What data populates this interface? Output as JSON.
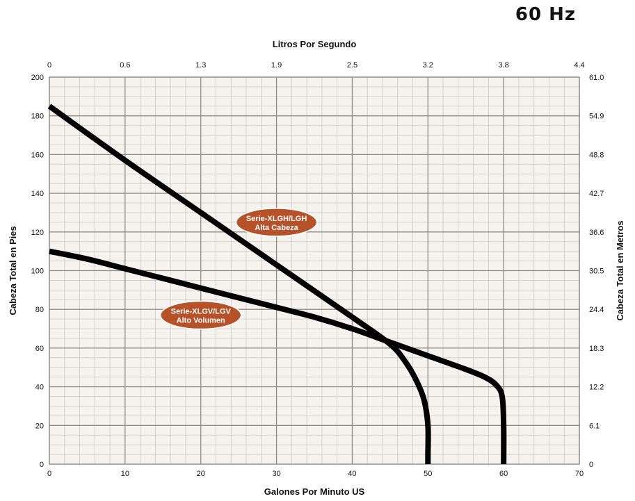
{
  "header": {
    "frequency_label": "60 Hz"
  },
  "chart_data": {
    "type": "line",
    "title": "",
    "xlabel": "Galones Por Minuto US",
    "ylabel": "Cabeza Total en Pies",
    "x2label": "Litros Por Segundo",
    "y2label": "Cabeza Total en Metros",
    "xlim": [
      0,
      70
    ],
    "ylim": [
      0,
      200
    ],
    "x_ticks": [
      0,
      10,
      20,
      30,
      40,
      50,
      60,
      70
    ],
    "y_ticks": [
      0,
      20,
      40,
      60,
      80,
      100,
      120,
      140,
      160,
      180,
      200
    ],
    "x2_tick_labels": [
      "0",
      "0.6",
      "1.3",
      "1.9",
      "2.5",
      "3.2",
      "3.8",
      "4.4"
    ],
    "y2_tick_labels": [
      "0",
      "6.1",
      "12.2",
      "18.3",
      "24.4",
      "30.5",
      "36.6",
      "42.7",
      "48.8",
      "54.9",
      "61.0"
    ],
    "grid": true,
    "colors": {
      "curve": "#000000",
      "badge": "#b5522a",
      "grid_major": "#8c8c8c",
      "grid_minor": "#c8c8c8",
      "background": "#f6f3ee"
    },
    "series": [
      {
        "label_lines": [
          "Serie-XLGH/LGH",
          "Alta Cabeza"
        ],
        "label_at": [
          30,
          125
        ],
        "x": [
          0,
          10,
          20,
          30,
          40,
          45,
          47,
          48.5,
          49.5,
          50,
          50,
          50
        ],
        "y": [
          185,
          157,
          130,
          103,
          76,
          62,
          53,
          43,
          33,
          20,
          5,
          0
        ]
      },
      {
        "label_lines": [
          "Serie-XLGV/LGV",
          "Alto Volumen"
        ],
        "label_at": [
          20,
          77
        ],
        "x": [
          0,
          5,
          10,
          15,
          20,
          25,
          30,
          35,
          40,
          45,
          50,
          55,
          57.5,
          59,
          59.8,
          60,
          60
        ],
        "y": [
          110,
          106,
          101,
          96,
          91,
          86,
          81,
          76,
          70,
          63,
          56,
          49,
          45,
          41,
          35,
          20,
          0
        ]
      }
    ]
  }
}
